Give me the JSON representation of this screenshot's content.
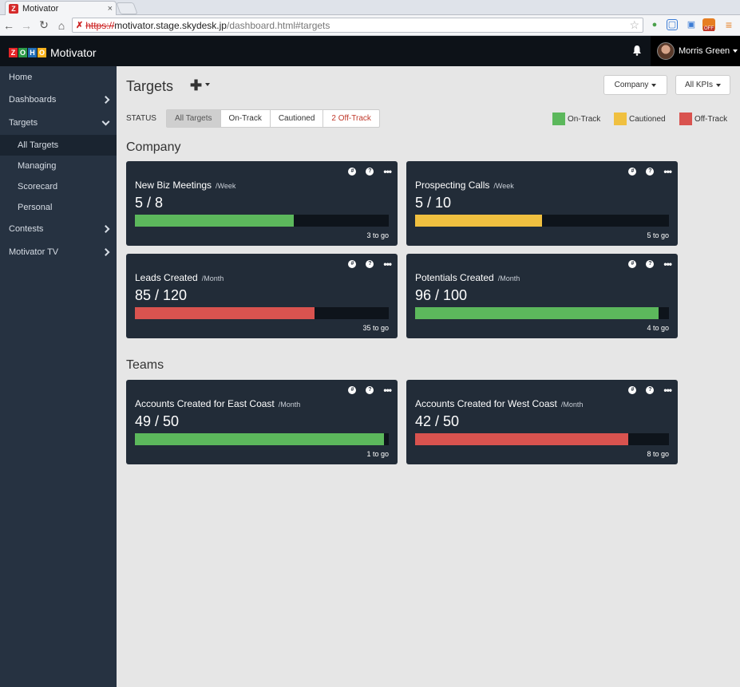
{
  "browser": {
    "tab_title": "Motivator",
    "tab_close": "×",
    "favicon_letter": "Z",
    "url_scheme": "https://",
    "url_host": "motivator.stage.skydesk.jp",
    "url_path": "/dashboard.html#targets",
    "ext_off_label": "OFF"
  },
  "header": {
    "brand": "Motivator",
    "zoho_letters": [
      "Z",
      "O",
      "H",
      "O"
    ],
    "user_name": "Morris Green"
  },
  "sidebar": {
    "items": [
      {
        "label": "Home"
      },
      {
        "label": "Dashboards"
      },
      {
        "label": "Targets"
      },
      {
        "label": "All Targets"
      },
      {
        "label": "Managing"
      },
      {
        "label": "Scorecard"
      },
      {
        "label": "Personal"
      },
      {
        "label": "Contests"
      },
      {
        "label": "Motivator TV"
      }
    ]
  },
  "main": {
    "title": "Targets",
    "add_symbol": "✚",
    "company_dropdown": "Company",
    "kpis_dropdown": "All KPIs",
    "status_label": "STATUS",
    "filters": [
      "All Targets",
      "On-Track",
      "Cautioned",
      "2 Off-Track"
    ],
    "legend": [
      {
        "label": "On-Track",
        "color": "#5cb85c"
      },
      {
        "label": "Cautioned",
        "color": "#f0c040"
      },
      {
        "label": "Off-Track",
        "color": "#d9534f"
      }
    ],
    "sections": {
      "company": "Company",
      "teams": "Teams"
    }
  },
  "cards": [
    {
      "title": "New Biz Meetings",
      "period": "/Week",
      "value": "5 / 8",
      "togo": "3 to go",
      "progress": 0.625,
      "color": "#5cb85c"
    },
    {
      "title": "Prospecting Calls",
      "period": "/Week",
      "value": "5 / 10",
      "togo": "5 to go",
      "progress": 0.5,
      "color": "#f0c040"
    },
    {
      "title": "Leads Created",
      "period": "/Month",
      "value": "85 / 120",
      "togo": "35 to go",
      "progress": 0.708,
      "color": "#d9534f"
    },
    {
      "title": "Potentials Created",
      "period": "/Month",
      "value": "96 / 100",
      "togo": "4 to go",
      "progress": 0.96,
      "color": "#5cb85c"
    },
    {
      "title": "Accounts Created for East Coast",
      "period": "/Month",
      "value": "49 / 50",
      "togo": "1 to go",
      "progress": 0.98,
      "color": "#5cb85c"
    },
    {
      "title": "Accounts Created for West Coast",
      "period": "/Month",
      "value": "42 / 50",
      "togo": "8 to go",
      "progress": 0.84,
      "color": "#d9534f"
    }
  ],
  "card_icons": {
    "hash": "#",
    "help": "?",
    "more": "•••"
  }
}
